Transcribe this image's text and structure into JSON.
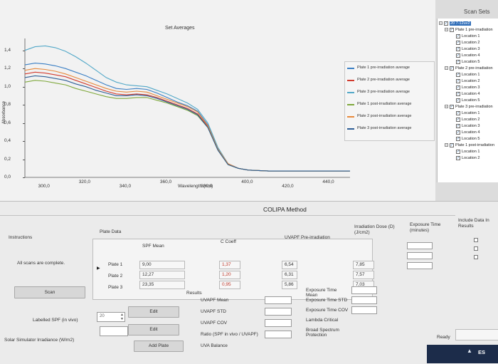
{
  "chart": {
    "title": "Set Averages",
    "ylabel": "Absorbance",
    "xlabel": "Wavelength (nm)",
    "y_ticks": [
      "1,4",
      "1,2",
      "1,0",
      "0,8",
      "0,6",
      "0,4",
      "0,2",
      "0,0"
    ],
    "x_ticks": [
      "300,0",
      "320,0",
      "340,0",
      "360,0",
      "380,0",
      "400,0",
      "420,0",
      "440,0"
    ]
  },
  "chart_data": {
    "type": "line",
    "title": "Set Averages",
    "xlabel": "Wavelength (nm)",
    "ylabel": "Absorbance",
    "xlim": [
      290,
      450
    ],
    "ylim": [
      0,
      1.5
    ],
    "grid": false,
    "legend_position": "right",
    "x": [
      290,
      295,
      300,
      305,
      310,
      315,
      320,
      325,
      330,
      335,
      340,
      345,
      350,
      355,
      360,
      365,
      370,
      375,
      380,
      385,
      390,
      395,
      400,
      410,
      420,
      430,
      440,
      450
    ],
    "series": [
      {
        "name": "Plate 1 pre-irradiation average",
        "color": "#3a7fc4",
        "values": [
          1.24,
          1.26,
          1.25,
          1.23,
          1.2,
          1.16,
          1.12,
          1.07,
          1.02,
          0.98,
          0.97,
          0.98,
          0.97,
          0.93,
          0.88,
          0.83,
          0.79,
          0.73,
          0.58,
          0.32,
          0.15,
          0.1,
          0.08,
          0.07,
          0.07,
          0.07,
          0.07,
          0.07
        ]
      },
      {
        "name": "Plate 2 pre-irradiation average",
        "color": "#d13b2f",
        "values": [
          1.14,
          1.16,
          1.15,
          1.13,
          1.11,
          1.07,
          1.03,
          0.99,
          0.95,
          0.92,
          0.91,
          0.92,
          0.91,
          0.88,
          0.84,
          0.8,
          0.76,
          0.7,
          0.56,
          0.31,
          0.15,
          0.1,
          0.08,
          0.07,
          0.07,
          0.07,
          0.07,
          0.07
        ]
      },
      {
        "name": "Plate 3 pre-irradiation average",
        "color": "#52a8c8",
        "values": [
          1.4,
          1.44,
          1.45,
          1.43,
          1.39,
          1.33,
          1.26,
          1.18,
          1.1,
          1.05,
          1.02,
          1.01,
          1.0,
          0.96,
          0.92,
          0.87,
          0.82,
          0.75,
          0.6,
          0.33,
          0.15,
          0.1,
          0.08,
          0.07,
          0.07,
          0.07,
          0.07,
          0.07
        ]
      },
      {
        "name": "Plate 1 post-irradiation average",
        "color": "#7fa83c",
        "values": [
          1.05,
          1.07,
          1.06,
          1.04,
          1.02,
          0.98,
          0.95,
          0.92,
          0.89,
          0.87,
          0.87,
          0.88,
          0.88,
          0.85,
          0.82,
          0.78,
          0.74,
          0.68,
          0.55,
          0.3,
          0.14,
          0.1,
          0.08,
          0.07,
          0.07,
          0.07,
          0.07,
          0.07
        ]
      },
      {
        "name": "Plate 2 post-irradiation average",
        "color": "#e8893a",
        "values": [
          1.18,
          1.2,
          1.19,
          1.17,
          1.14,
          1.1,
          1.06,
          1.02,
          0.98,
          0.95,
          0.94,
          0.95,
          0.94,
          0.9,
          0.86,
          0.82,
          0.78,
          0.72,
          0.57,
          0.31,
          0.15,
          0.1,
          0.08,
          0.07,
          0.07,
          0.07,
          0.07,
          0.07
        ]
      },
      {
        "name": "Plate 3 post-irradiation average",
        "color": "#2f5f96",
        "values": [
          1.1,
          1.12,
          1.11,
          1.09,
          1.07,
          1.03,
          1.0,
          0.96,
          0.93,
          0.9,
          0.9,
          0.91,
          0.9,
          0.87,
          0.83,
          0.79,
          0.75,
          0.69,
          0.55,
          0.3,
          0.14,
          0.1,
          0.08,
          0.07,
          0.07,
          0.07,
          0.07,
          0.07
        ]
      }
    ]
  },
  "legend": [
    {
      "label": "Plate 1 pre-irradiation average",
      "color": "#3a7fc4"
    },
    {
      "label": "Plate 2 pre-irradiation average",
      "color": "#d13b2f"
    },
    {
      "label": "Plate 3 pre-irradiation average",
      "color": "#52a8c8"
    },
    {
      "label": "Plate 1 post-irradiation average",
      "color": "#7fa83c"
    },
    {
      "label": "Plate 2 post-irradiation average",
      "color": "#e8893a"
    },
    {
      "label": "Plate 3 post-irradiation average",
      "color": "#2f5f96"
    }
  ],
  "scan_sets": {
    "title": "Scan Sets",
    "root": "20 7-12uv2",
    "groups": [
      {
        "label": "Plate 1 pre-irradiation",
        "items": [
          "Location 1",
          "Location 2",
          "Location 3",
          "Location 4",
          "Location 5"
        ]
      },
      {
        "label": "Plate 2 pre-irradiation",
        "items": [
          "Location 1",
          "Location 2",
          "Location 3",
          "Location 4",
          "Location 5"
        ]
      },
      {
        "label": "Plate 3 pre-irradiation",
        "items": [
          "Location 1",
          "Location 2",
          "Location 3",
          "Location 4",
          "Location 5"
        ]
      },
      {
        "label": "Plate 1 post-irradiation",
        "items": [
          "Location 1",
          "Location 2"
        ]
      }
    ]
  },
  "colipa": {
    "title": "COLIPA Method",
    "instructions_label": "Instructions",
    "instructions_text": "All scans are complete.",
    "scan_button": "Scan",
    "labelled_spf_label": "Labelled SPF (in vivo)",
    "labelled_spf_value": "20",
    "edit_button_1": "Edit",
    "solar_label": "Solar Simulator Irradiance (W/m2)",
    "edit_button_2": "Edit",
    "add_plate_button": "Add Plate",
    "plate_data_label": "Plate Data",
    "col_spf_mean": "SPF Mean",
    "col_c_coeff": "C Coeff",
    "col_uvapf": "UVAPF Pre-irradiation",
    "col_dose": "Irradiation Dose (D) (J/cm2)",
    "col_exposure": "Exposure Time (minutes)",
    "col_include": "Include Data In Results",
    "rows": [
      {
        "plate": "Plate 1",
        "spf": "9,00",
        "c": "1,37",
        "uvapf": "6,54",
        "dose": "7,85"
      },
      {
        "plate": "Plate 2",
        "spf": "12,27",
        "c": "1,20",
        "uvapf": "6,31",
        "dose": "7,57"
      },
      {
        "plate": "Plate 3",
        "spf": "23,35",
        "c": "0,95",
        "uvapf": "5,86",
        "dose": "7,03"
      }
    ],
    "results_label": "Results",
    "results_left": [
      "UVAPF Mean",
      "UVAPF STD",
      "UVAPF COV",
      "Ratio (SPF in vivo / UVAPF)",
      "UVA Balance"
    ],
    "results_right": [
      "Exposure Time Mean",
      "Exposure Time STD",
      "Exposure Time COV",
      "Lambda Critical",
      "Broad Spectrum Protection"
    ],
    "status": "Ready",
    "lang": "ES"
  }
}
